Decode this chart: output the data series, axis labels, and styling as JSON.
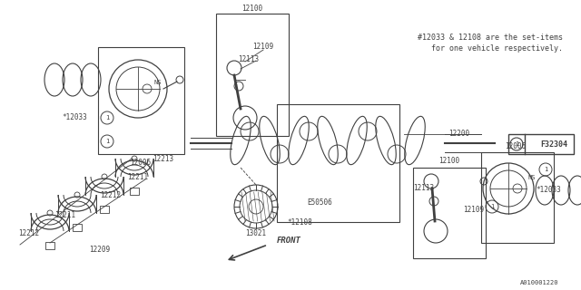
{
  "bg_color": "#ffffff",
  "line_color": "#404040",
  "text_color": "#404040",
  "note_text1": "#12033 & 12108 are the set-items",
  "note_text2": "   for one vehicle respectively.",
  "part_id": "F32304",
  "bottom_id": "A010001220",
  "front_label": "FRONT",
  "figsize": [
    6.4,
    3.2
  ],
  "dpi": 100
}
